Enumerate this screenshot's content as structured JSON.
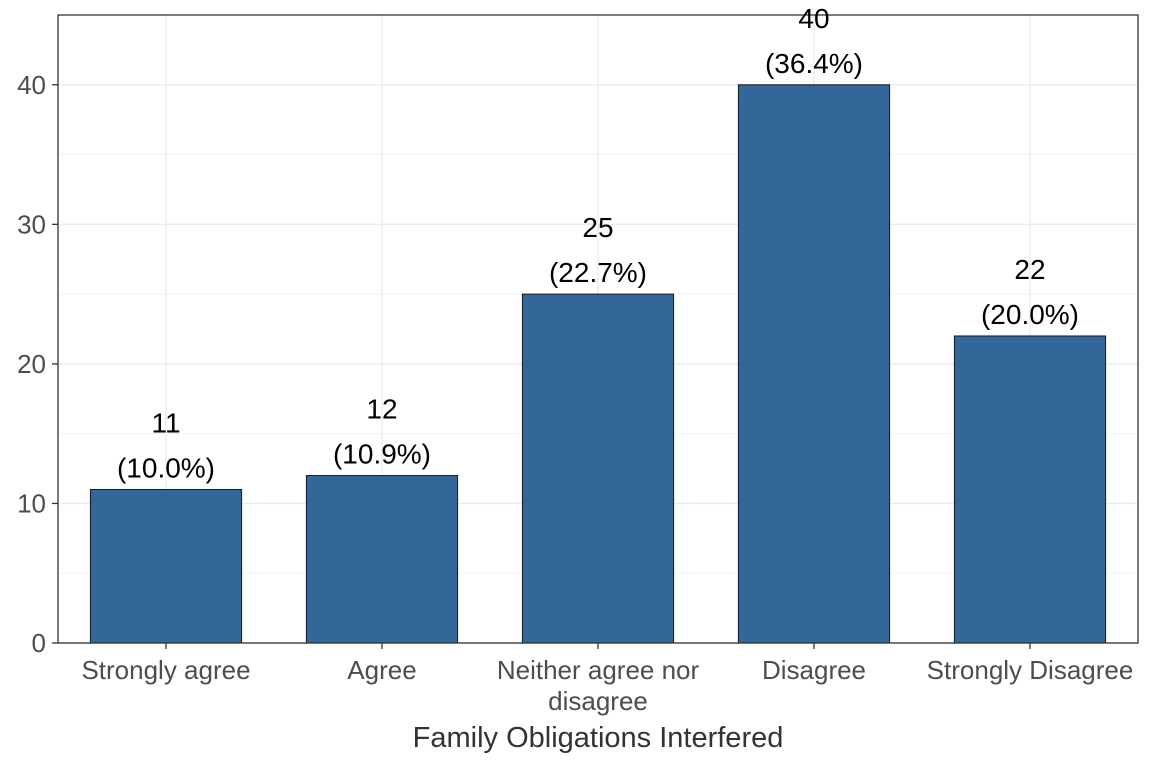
{
  "chart_data": {
    "type": "bar",
    "categories": [
      [
        "Strongly agree"
      ],
      [
        "Agree"
      ],
      [
        "Neither agree nor",
        "disagree"
      ],
      [
        "Disagree"
      ],
      [
        "Strongly Disagree"
      ]
    ],
    "values": [
      11,
      12,
      25,
      40,
      22
    ],
    "percent_labels": [
      "(10.0%)",
      "(10.9%)",
      "(22.7%)",
      "(36.4%)",
      "(20.0%)"
    ],
    "title": "",
    "xlabel": "Family Obligations Interfered",
    "ylabel": "",
    "ylim": [
      0,
      45
    ],
    "yticks": [
      0,
      10,
      20,
      30,
      40
    ],
    "bar_color": "#336699",
    "grid": true,
    "legend": "none"
  }
}
